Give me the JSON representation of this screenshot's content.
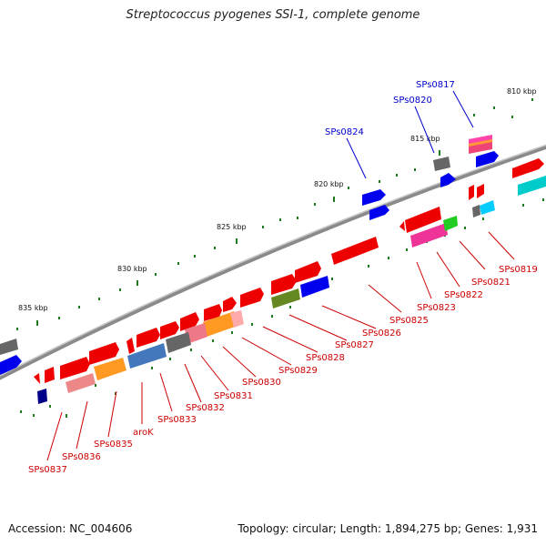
{
  "title": "Streptococcus pyogenes SSI-1, complete genome",
  "footer": {
    "accession": "Accession: NC_004606",
    "summary": "Topology: circular; Length: 1,894,275 bp; Genes: 1,931"
  },
  "colors": {
    "backbone": "#8a8a8a",
    "tick": "#1f7a1f",
    "label_red": "#cc0000",
    "label_blue": "#0000cc",
    "kbp_text": "#111111"
  },
  "scale_labels": [
    "810 kbp",
    "815 kbp",
    "820 kbp",
    "825 kbp",
    "830 kbp",
    "835 kbp"
  ],
  "gene_labels": [
    {
      "text": "SPs0817",
      "color": "blue"
    },
    {
      "text": "SPs0820",
      "color": "blue"
    },
    {
      "text": "SPs0824",
      "color": "blue"
    },
    {
      "text": "SPs0819",
      "color": "red"
    },
    {
      "text": "SPs0821",
      "color": "red"
    },
    {
      "text": "SPs0822",
      "color": "red"
    },
    {
      "text": "SPs0823",
      "color": "red"
    },
    {
      "text": "SPs0825",
      "color": "red"
    },
    {
      "text": "SPs0826",
      "color": "red"
    },
    {
      "text": "SPs0827",
      "color": "red"
    },
    {
      "text": "SPs0828",
      "color": "red"
    },
    {
      "text": "SPs0829",
      "color": "red"
    },
    {
      "text": "SPs0830",
      "color": "red"
    },
    {
      "text": "SPs0831",
      "color": "red"
    },
    {
      "text": "SPs0832",
      "color": "red"
    },
    {
      "text": "SPs0833",
      "color": "red"
    },
    {
      "text": "aroK",
      "color": "red"
    },
    {
      "text": "SPs0835",
      "color": "red"
    },
    {
      "text": "SPs0836",
      "color": "red"
    },
    {
      "text": "SPs0837",
      "color": "red"
    }
  ]
}
